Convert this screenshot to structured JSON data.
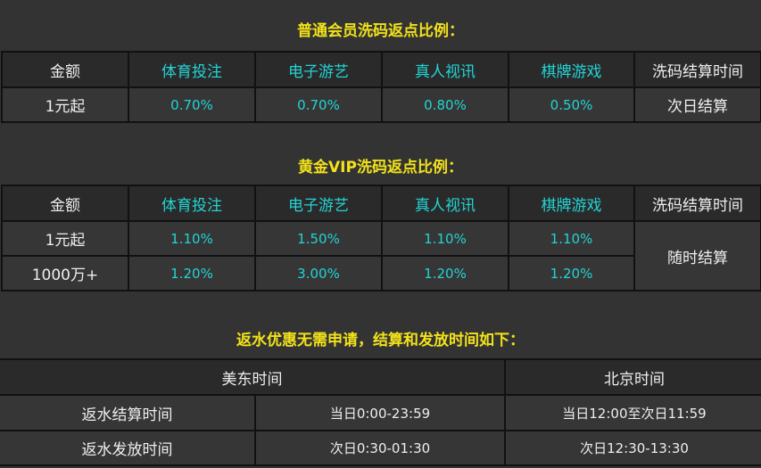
{
  "normal": {
    "title": "普通会员洗码返点比例：",
    "headers": [
      "金额",
      "体育投注",
      "电子游艺",
      "真人视讯",
      "棋牌游戏",
      "洗码结算时间"
    ],
    "rows": [
      [
        "1元起",
        "0.70%",
        "0.70%",
        "0.80%",
        "0.50%",
        "次日结算"
      ]
    ]
  },
  "vip": {
    "title": "黄金VIP洗码返点比例：",
    "headers": [
      "金额",
      "体育投注",
      "电子游艺",
      "真人视讯",
      "棋牌游戏",
      "洗码结算时间"
    ],
    "rows": [
      [
        "1元起",
        "1.10%",
        "1.50%",
        "1.10%",
        "1.10%"
      ],
      [
        "1000万+",
        "1.20%",
        "3.00%",
        "1.20%",
        "1.20%"
      ]
    ],
    "settle": "随时结算"
  },
  "rebate": {
    "title": "返水优惠无需申请，结算和发放时间如下：",
    "headers": [
      "美东时间",
      "北京时间"
    ],
    "rows": [
      [
        "返水结算时间",
        "当日0:00-23:59",
        "当日12:00至次日11:59"
      ],
      [
        "返水发放时间",
        "次日0:30-01:30",
        "次日12:30-13:30"
      ]
    ]
  },
  "colors": {
    "title": "#f2e21a",
    "cyan": "#22d4d4",
    "background": "#333333"
  }
}
